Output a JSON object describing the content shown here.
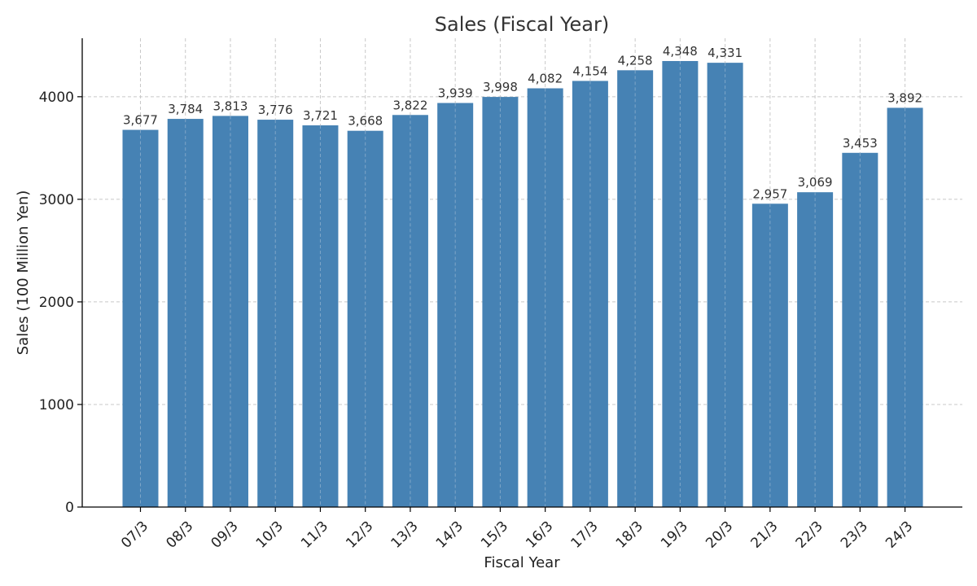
{
  "chart_data": {
    "type": "bar",
    "title": "Sales (Fiscal Year)",
    "xlabel": "Fiscal Year",
    "ylabel": "Sales (100 Million Yen)",
    "categories": [
      "07/3",
      "08/3",
      "09/3",
      "10/3",
      "11/3",
      "12/3",
      "13/3",
      "14/3",
      "15/3",
      "16/3",
      "17/3",
      "18/3",
      "19/3",
      "20/3",
      "21/3",
      "22/3",
      "23/3",
      "24/3"
    ],
    "values": [
      3677,
      3784,
      3813,
      3776,
      3721,
      3668,
      3822,
      3939,
      3998,
      4082,
      4154,
      4258,
      4348,
      4331,
      2957,
      3069,
      3453,
      3892
    ],
    "data_labels": [
      "3,677",
      "3,784",
      "3,813",
      "3,776",
      "3,721",
      "3,668",
      "3,822",
      "3,939",
      "3,998",
      "4,082",
      "4,154",
      "4,258",
      "4,348",
      "4,331",
      "2,957",
      "3,069",
      "3,453",
      "3,892"
    ],
    "yticks": [
      0,
      1000,
      2000,
      3000,
      4000
    ],
    "ylim": [
      0,
      4570
    ],
    "grid": true,
    "bar_color": "#4682b4"
  }
}
